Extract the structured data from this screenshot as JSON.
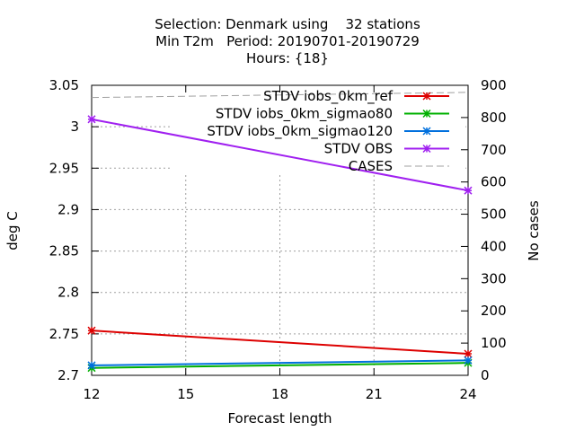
{
  "chart_data": {
    "type": "line",
    "title_lines": [
      "Selection: Denmark using    32 stations",
      "Min T2m   Period: 20190701-20190729",
      "Hours: {18}"
    ],
    "xlabel": "Forecast length",
    "ylabel": "deg C",
    "y2label": "No cases",
    "x": [
      12,
      24
    ],
    "xlim": [
      12,
      24
    ],
    "xticks": [
      12,
      15,
      18,
      21,
      24
    ],
    "ylim": [
      2.7,
      3.05
    ],
    "yticks": [
      "2.7",
      "2.75",
      "2.8",
      "2.85",
      "2.9",
      "2.95",
      "3",
      "3.05"
    ],
    "y2lim": [
      0,
      900
    ],
    "y2ticks": [
      0,
      100,
      200,
      300,
      400,
      500,
      600,
      700,
      800,
      900
    ],
    "grid": true,
    "legend_position": "top-right",
    "series": [
      {
        "name": "STDV iobs_0km_ref",
        "axis": "y",
        "color": "#dd0000",
        "style": "solid",
        "marker": "x",
        "values": [
          2.754,
          2.726
        ]
      },
      {
        "name": "STDV iobs_0km_sigmao80",
        "axis": "y",
        "color": "#00b000",
        "style": "solid",
        "marker": "x",
        "values": [
          2.709,
          2.715
        ]
      },
      {
        "name": "STDV iobs_0km_sigmao120",
        "axis": "y",
        "color": "#0070dd",
        "style": "solid",
        "marker": "x",
        "values": [
          2.712,
          2.718
        ]
      },
      {
        "name": "STDV OBS",
        "axis": "y",
        "color": "#a020f0",
        "style": "solid",
        "marker": "x",
        "values": [
          3.009,
          2.923
        ]
      },
      {
        "name": "CASES",
        "axis": "y2",
        "color": "#a0a0a0",
        "style": "dashed",
        "marker": "",
        "values": [
          862,
          878
        ]
      }
    ]
  }
}
